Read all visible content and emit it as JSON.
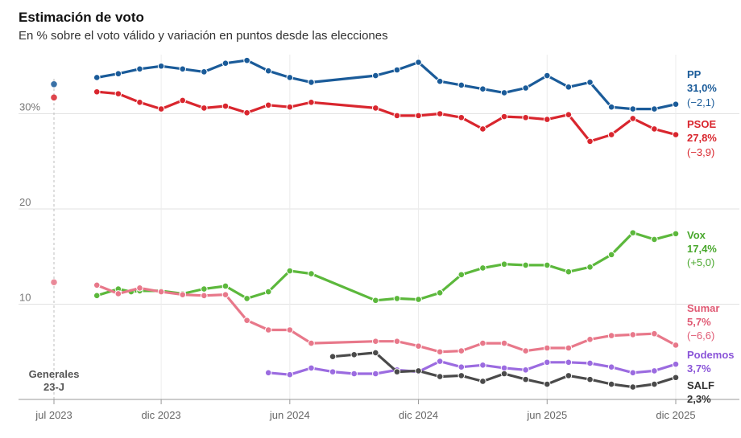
{
  "chart_data": {
    "type": "line",
    "title": "Estimación de voto",
    "subtitle": "En % sobre el voto válido y variación en puntos desde las elecciones",
    "ylim": [
      0,
      36
    ],
    "yticks": [
      {
        "value": 30,
        "label": "30%"
      },
      {
        "value": 20,
        "label": "20"
      },
      {
        "value": 10,
        "label": "10"
      }
    ],
    "xticks": [
      {
        "value": 0,
        "label": "jul 2023"
      },
      {
        "value": 5,
        "label": "dic 2023"
      },
      {
        "value": 11,
        "label": "jun 2024"
      },
      {
        "value": 17,
        "label": "dic 2024"
      },
      {
        "value": 23,
        "label": "jun 2025"
      },
      {
        "value": 29,
        "label": "dic 2025"
      }
    ],
    "xlim": [
      0,
      29
    ],
    "annotation": {
      "x": 0,
      "line1": "Generales",
      "line2": "23-J"
    },
    "series": [
      {
        "name": "PP",
        "color": "#1a5b99",
        "name_color": "#1a5b99",
        "election": 33.1,
        "value_label": "31,0%",
        "change_label": "(−2,1)",
        "x": [
          2,
          3,
          4,
          5,
          6,
          7,
          8,
          9,
          10,
          11,
          12,
          15,
          16,
          17,
          18,
          19,
          20,
          21,
          22,
          23,
          24,
          25,
          26,
          27,
          28,
          29
        ],
        "values": [
          33.8,
          34.2,
          34.7,
          35.0,
          34.7,
          34.4,
          35.3,
          35.6,
          34.5,
          33.8,
          33.3,
          34.0,
          34.6,
          35.4,
          33.4,
          33.0,
          32.6,
          32.2,
          32.7,
          34.0,
          32.8,
          33.3,
          30.7,
          30.5,
          30.5,
          31.0
        ]
      },
      {
        "name": "PSOE",
        "color": "#d9262e",
        "name_color": "#d9262e",
        "election": 31.7,
        "value_label": "27,8%",
        "change_label": "(−3,9)",
        "x": [
          2,
          3,
          4,
          5,
          6,
          7,
          8,
          9,
          10,
          11,
          12,
          15,
          16,
          17,
          18,
          19,
          20,
          21,
          22,
          23,
          24,
          25,
          26,
          27,
          28,
          29
        ],
        "values": [
          32.3,
          32.1,
          31.2,
          30.5,
          31.4,
          30.6,
          30.8,
          30.1,
          30.9,
          30.7,
          31.2,
          30.6,
          29.8,
          29.8,
          30.0,
          29.6,
          28.4,
          29.7,
          29.6,
          29.4,
          29.9,
          27.1,
          27.8,
          29.5,
          28.4,
          27.8
        ]
      },
      {
        "name": "Vox",
        "color": "#5cb83c",
        "name_color": "#4aa82e",
        "election": null,
        "value_label": "17,4%",
        "change_label": "(+5,0)",
        "x": [
          2,
          3,
          3.6,
          4,
          5,
          6,
          7,
          8,
          9,
          10,
          11,
          12,
          15,
          16,
          17,
          18,
          19,
          20,
          21,
          22,
          23,
          24,
          25,
          26,
          27,
          28,
          29
        ],
        "values": [
          10.9,
          11.6,
          11.3,
          11.4,
          11.4,
          11.1,
          11.6,
          11.9,
          10.6,
          11.3,
          13.5,
          13.2,
          10.4,
          10.6,
          10.5,
          11.2,
          13.1,
          13.8,
          14.2,
          14.1,
          14.1,
          13.4,
          13.9,
          15.2,
          17.5,
          16.8,
          17.4
        ]
      },
      {
        "name": "Sumar",
        "color": "#e8788a",
        "name_color": "#e05a74",
        "election": 12.3,
        "value_label": "5,7%",
        "change_label": "(−6,6)",
        "x": [
          2,
          3,
          4,
          5,
          6,
          7,
          8,
          9,
          10,
          11,
          12,
          15,
          16,
          17,
          18,
          19,
          20,
          21,
          22,
          23,
          24,
          25,
          26,
          27,
          28,
          29
        ],
        "values": [
          12.0,
          11.1,
          11.7,
          11.3,
          11.0,
          10.9,
          11.0,
          8.3,
          7.3,
          7.3,
          5.9,
          6.1,
          6.1,
          5.6,
          5.0,
          5.1,
          5.9,
          5.9,
          5.1,
          5.4,
          5.4,
          6.3,
          6.7,
          6.8,
          6.9,
          5.7
        ]
      },
      {
        "name": "Podemos",
        "color": "#9b6be0",
        "name_color": "#8a55d8",
        "election": null,
        "value_label": "3,7%",
        "change_label": "",
        "x": [
          10,
          11,
          12,
          13,
          14,
          15,
          16,
          17,
          18,
          19,
          20,
          21,
          22,
          23,
          24,
          25,
          26,
          27,
          28,
          29
        ],
        "values": [
          2.8,
          2.6,
          3.3,
          2.9,
          2.7,
          2.7,
          3.1,
          2.9,
          4.0,
          3.4,
          3.6,
          3.3,
          3.1,
          3.9,
          3.9,
          3.8,
          3.4,
          2.8,
          3.0,
          3.7
        ]
      },
      {
        "name": "SALF",
        "color": "#4a4a4a",
        "name_color": "#333333",
        "election": null,
        "value_label": "2,3%",
        "change_label": "",
        "x": [
          13,
          14,
          15,
          16,
          17,
          18,
          19,
          20,
          21,
          22,
          23,
          24,
          25,
          26,
          27,
          28,
          29
        ],
        "values": [
          4.5,
          4.7,
          4.9,
          2.9,
          3.0,
          2.4,
          2.5,
          1.9,
          2.7,
          2.1,
          1.6,
          2.5,
          2.1,
          1.6,
          1.3,
          1.6,
          2.3
        ]
      }
    ]
  }
}
